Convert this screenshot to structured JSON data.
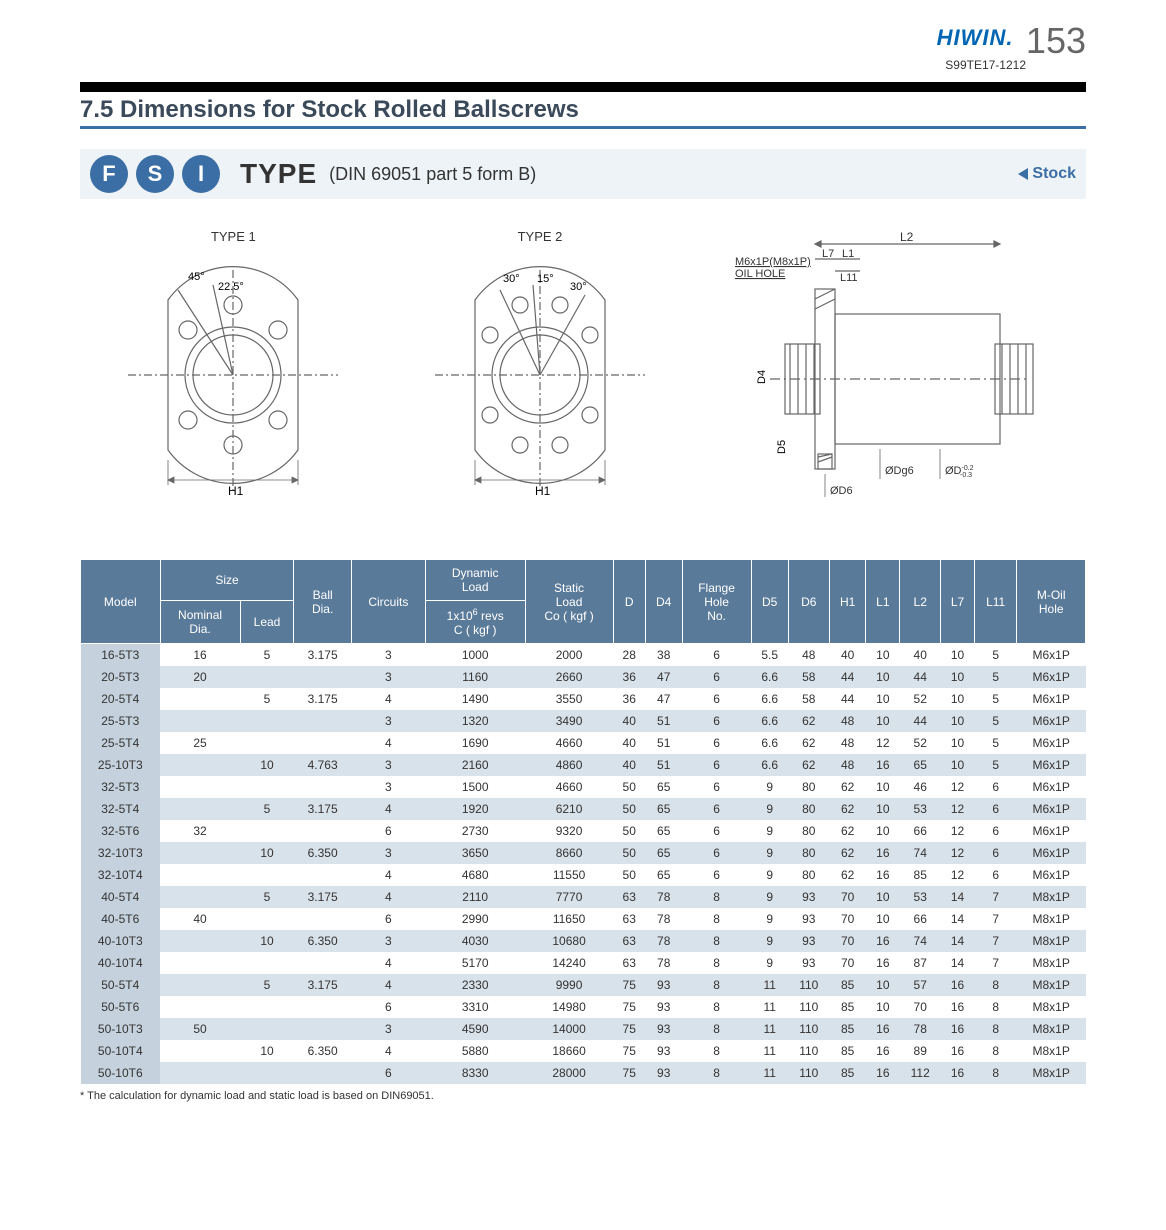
{
  "header": {
    "brand": "HIWIN",
    "brand_dot": ".",
    "docnum": "S99TE17-1212",
    "pagenum": "153"
  },
  "title": "7.5 Dimensions for Stock Rolled Ballscrews",
  "typebar": {
    "badges": [
      "F",
      "S",
      "I"
    ],
    "type_label": "TYPE",
    "type_sub": "(DIN 69051 part 5 form B)",
    "stock": "Stock"
  },
  "diagrams": {
    "type1": {
      "caption": "TYPE 1",
      "ang1": "45°",
      "ang2": "22.5°",
      "H1": "H1"
    },
    "type2": {
      "caption": "TYPE 2",
      "ang1": "30°",
      "ang2": "15°",
      "ang3": "30°",
      "H1": "H1"
    },
    "side": {
      "l2": "L2",
      "l7": "L7",
      "l1": "L1",
      "l11": "L11",
      "oil_label": "M6x1P(M8x1P)",
      "oil_hole": "OIL HOLE",
      "d4": "D4",
      "d5": "D5",
      "dg6": "ØDg6",
      "dh6": "ØD",
      "d6": "ØD6",
      "tol": "-0.2\n-0.3"
    }
  },
  "table": {
    "headers": {
      "model": "Model",
      "size": "Size",
      "nominal": "Nominal\nDia.",
      "lead": "Lead",
      "ball": "Ball\nDia.",
      "circuits": "Circuits",
      "dyn": "Dynamic\nLoad",
      "dyn2": "1x10⁶ revs\nC ( kgf )",
      "static": "Static\nLoad",
      "static2": "Co ( kgf )",
      "D": "D",
      "D4": "D4",
      "flange": "Flange\nHole\nNo.",
      "D5": "D5",
      "D6": "D6",
      "H1": "H1",
      "L1": "L1",
      "L2": "L2",
      "L7": "L7",
      "L11": "L11",
      "moil": "M-Oil\nHole"
    },
    "rows": [
      {
        "m": "16-5T3",
        "nd": "16",
        "lead": "5",
        "bd": "3.175",
        "c": "3",
        "dl": "1000",
        "sl": "2000",
        "D": "28",
        "D4": "38",
        "fh": "6",
        "D5": "5.5",
        "D6": "48",
        "H1": "40",
        "L1": "10",
        "L2": "40",
        "L7": "10",
        "L11": "5",
        "oil": "M6x1P"
      },
      {
        "m": "20-5T3",
        "nd": "20",
        "lead": "",
        "bd": "",
        "c": "3",
        "dl": "1160",
        "sl": "2660",
        "D": "36",
        "D4": "47",
        "fh": "6",
        "D5": "6.6",
        "D6": "58",
        "H1": "44",
        "L1": "10",
        "L2": "44",
        "L7": "10",
        "L11": "5",
        "oil": "M6x1P"
      },
      {
        "m": "20-5T4",
        "nd": "",
        "lead": "5",
        "bd": "3.175",
        "c": "4",
        "dl": "1490",
        "sl": "3550",
        "D": "36",
        "D4": "47",
        "fh": "6",
        "D5": "6.6",
        "D6": "58",
        "H1": "44",
        "L1": "10",
        "L2": "52",
        "L7": "10",
        "L11": "5",
        "oil": "M6x1P"
      },
      {
        "m": "25-5T3",
        "nd": "",
        "lead": "",
        "bd": "",
        "c": "3",
        "dl": "1320",
        "sl": "3490",
        "D": "40",
        "D4": "51",
        "fh": "6",
        "D5": "6.6",
        "D6": "62",
        "H1": "48",
        "L1": "10",
        "L2": "44",
        "L7": "10",
        "L11": "5",
        "oil": "M6x1P"
      },
      {
        "m": "25-5T4",
        "nd": "25",
        "lead": "",
        "bd": "",
        "c": "4",
        "dl": "1690",
        "sl": "4660",
        "D": "40",
        "D4": "51",
        "fh": "6",
        "D5": "6.6",
        "D6": "62",
        "H1": "48",
        "L1": "12",
        "L2": "52",
        "L7": "10",
        "L11": "5",
        "oil": "M6x1P"
      },
      {
        "m": "25-10T3",
        "nd": "",
        "lead": "10",
        "bd": "4.763",
        "c": "3",
        "dl": "2160",
        "sl": "4860",
        "D": "40",
        "D4": "51",
        "fh": "6",
        "D5": "6.6",
        "D6": "62",
        "H1": "48",
        "L1": "16",
        "L2": "65",
        "L7": "10",
        "L11": "5",
        "oil": "M6x1P"
      },
      {
        "m": "32-5T3",
        "nd": "",
        "lead": "",
        "bd": "",
        "c": "3",
        "dl": "1500",
        "sl": "4660",
        "D": "50",
        "D4": "65",
        "fh": "6",
        "D5": "9",
        "D6": "80",
        "H1": "62",
        "L1": "10",
        "L2": "46",
        "L7": "12",
        "L11": "6",
        "oil": "M6x1P"
      },
      {
        "m": "32-5T4",
        "nd": "",
        "lead": "5",
        "bd": "3.175",
        "c": "4",
        "dl": "1920",
        "sl": "6210",
        "D": "50",
        "D4": "65",
        "fh": "6",
        "D5": "9",
        "D6": "80",
        "H1": "62",
        "L1": "10",
        "L2": "53",
        "L7": "12",
        "L11": "6",
        "oil": "M6x1P"
      },
      {
        "m": "32-5T6",
        "nd": "32",
        "lead": "",
        "bd": "",
        "c": "6",
        "dl": "2730",
        "sl": "9320",
        "D": "50",
        "D4": "65",
        "fh": "6",
        "D5": "9",
        "D6": "80",
        "H1": "62",
        "L1": "10",
        "L2": "66",
        "L7": "12",
        "L11": "6",
        "oil": "M6x1P"
      },
      {
        "m": "32-10T3",
        "nd": "",
        "lead": "10",
        "bd": "6.350",
        "c": "3",
        "dl": "3650",
        "sl": "8660",
        "D": "50",
        "D4": "65",
        "fh": "6",
        "D5": "9",
        "D6": "80",
        "H1": "62",
        "L1": "16",
        "L2": "74",
        "L7": "12",
        "L11": "6",
        "oil": "M6x1P"
      },
      {
        "m": "32-10T4",
        "nd": "",
        "lead": "",
        "bd": "",
        "c": "4",
        "dl": "4680",
        "sl": "11550",
        "D": "50",
        "D4": "65",
        "fh": "6",
        "D5": "9",
        "D6": "80",
        "H1": "62",
        "L1": "16",
        "L2": "85",
        "L7": "12",
        "L11": "6",
        "oil": "M6x1P"
      },
      {
        "m": "40-5T4",
        "nd": "",
        "lead": "5",
        "bd": "3.175",
        "c": "4",
        "dl": "2110",
        "sl": "7770",
        "D": "63",
        "D4": "78",
        "fh": "8",
        "D5": "9",
        "D6": "93",
        "H1": "70",
        "L1": "10",
        "L2": "53",
        "L7": "14",
        "L11": "7",
        "oil": "M8x1P"
      },
      {
        "m": "40-5T6",
        "nd": "40",
        "lead": "",
        "bd": "",
        "c": "6",
        "dl": "2990",
        "sl": "11650",
        "D": "63",
        "D4": "78",
        "fh": "8",
        "D5": "9",
        "D6": "93",
        "H1": "70",
        "L1": "10",
        "L2": "66",
        "L7": "14",
        "L11": "7",
        "oil": "M8x1P"
      },
      {
        "m": "40-10T3",
        "nd": "",
        "lead": "10",
        "bd": "6.350",
        "c": "3",
        "dl": "4030",
        "sl": "10680",
        "D": "63",
        "D4": "78",
        "fh": "8",
        "D5": "9",
        "D6": "93",
        "H1": "70",
        "L1": "16",
        "L2": "74",
        "L7": "14",
        "L11": "7",
        "oil": "M8x1P"
      },
      {
        "m": "40-10T4",
        "nd": "",
        "lead": "",
        "bd": "",
        "c": "4",
        "dl": "5170",
        "sl": "14240",
        "D": "63",
        "D4": "78",
        "fh": "8",
        "D5": "9",
        "D6": "93",
        "H1": "70",
        "L1": "16",
        "L2": "87",
        "L7": "14",
        "L11": "7",
        "oil": "M8x1P"
      },
      {
        "m": "50-5T4",
        "nd": "",
        "lead": "5",
        "bd": "3.175",
        "c": "4",
        "dl": "2330",
        "sl": "9990",
        "D": "75",
        "D4": "93",
        "fh": "8",
        "D5": "11",
        "D6": "110",
        "H1": "85",
        "L1": "10",
        "L2": "57",
        "L7": "16",
        "L11": "8",
        "oil": "M8x1P"
      },
      {
        "m": "50-5T6",
        "nd": "",
        "lead": "",
        "bd": "",
        "c": "6",
        "dl": "3310",
        "sl": "14980",
        "D": "75",
        "D4": "93",
        "fh": "8",
        "D5": "11",
        "D6": "110",
        "H1": "85",
        "L1": "10",
        "L2": "70",
        "L7": "16",
        "L11": "8",
        "oil": "M8x1P"
      },
      {
        "m": "50-10T3",
        "nd": "50",
        "lead": "",
        "bd": "",
        "c": "3",
        "dl": "4590",
        "sl": "14000",
        "D": "75",
        "D4": "93",
        "fh": "8",
        "D5": "11",
        "D6": "110",
        "H1": "85",
        "L1": "16",
        "L2": "78",
        "L7": "16",
        "L11": "8",
        "oil": "M8x1P"
      },
      {
        "m": "50-10T4",
        "nd": "",
        "lead": "10",
        "bd": "6.350",
        "c": "4",
        "dl": "5880",
        "sl": "18660",
        "D": "75",
        "D4": "93",
        "fh": "8",
        "D5": "11",
        "D6": "110",
        "H1": "85",
        "L1": "16",
        "L2": "89",
        "L7": "16",
        "L11": "8",
        "oil": "M8x1P"
      },
      {
        "m": "50-10T6",
        "nd": "",
        "lead": "",
        "bd": "",
        "c": "6",
        "dl": "8330",
        "sl": "28000",
        "D": "75",
        "D4": "93",
        "fh": "8",
        "D5": "11",
        "D6": "110",
        "H1": "85",
        "L1": "16",
        "L2": "112",
        "L7": "16",
        "L11": "8",
        "oil": "M8x1P"
      }
    ]
  },
  "footnote": "* The calculation for dynamic load and static load is based on DIN69051."
}
